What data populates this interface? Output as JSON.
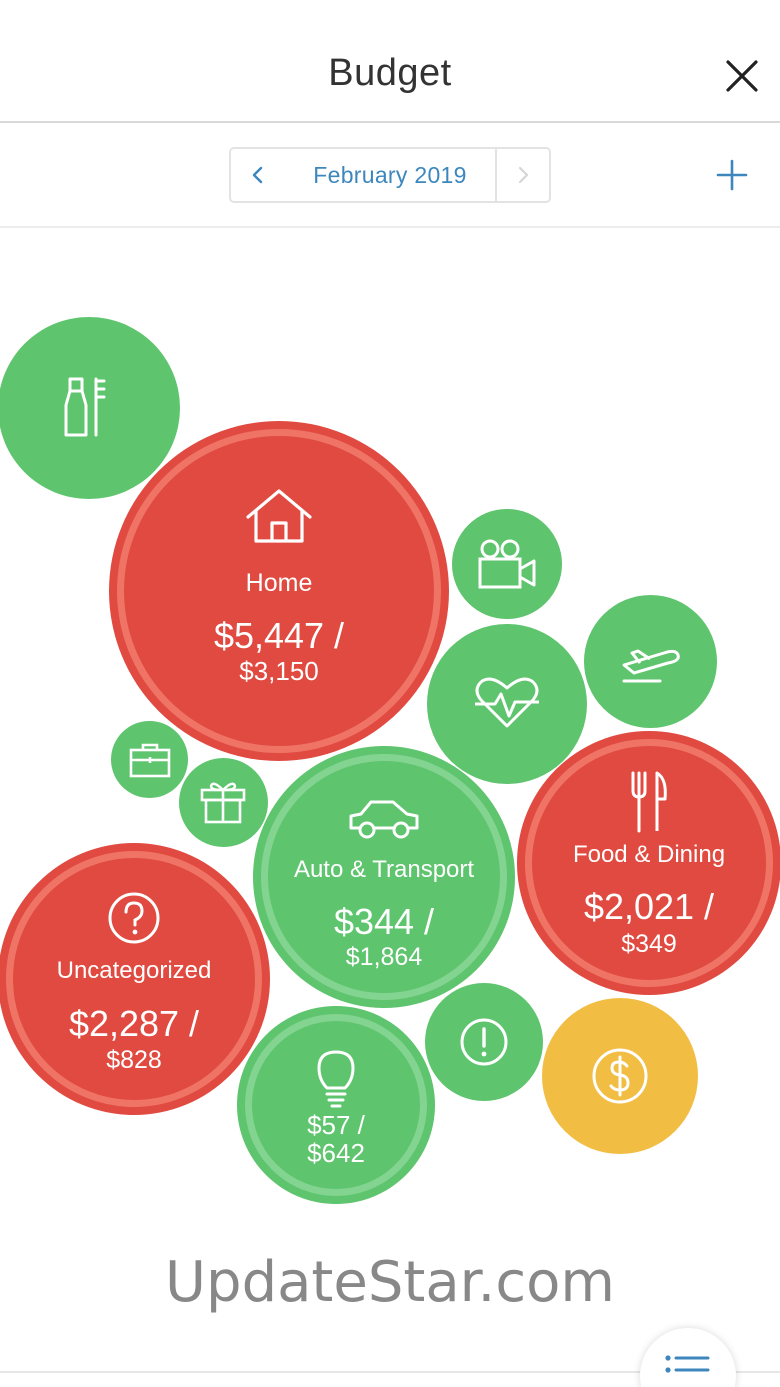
{
  "header": {
    "title": "Budget",
    "close_icon": "close-icon"
  },
  "month_selector": {
    "month": "February 2019",
    "prev_icon": "chevron-left-icon",
    "next_icon": "chevron-right-icon",
    "add_icon": "plus-icon"
  },
  "colors": {
    "over_budget": "#e04a40",
    "under_budget": "#5ec46e",
    "income": "#f1bd43",
    "accent": "#3d87bd"
  },
  "bubbles": {
    "personal_care": {
      "icon": "toothbrush-icon",
      "status": "under"
    },
    "home": {
      "label": "Home",
      "spent": "$5,447 /",
      "budget": "$3,150",
      "icon": "house-icon",
      "status": "over"
    },
    "entertainment": {
      "icon": "video-camera-icon",
      "status": "under"
    },
    "travel": {
      "icon": "airplane-icon",
      "status": "under"
    },
    "health": {
      "icon": "heartbeat-icon",
      "status": "under"
    },
    "business": {
      "icon": "briefcase-icon",
      "status": "under"
    },
    "gifts": {
      "icon": "gift-icon",
      "status": "under"
    },
    "auto": {
      "label": "Auto & Transport",
      "spent": "$344 /",
      "budget": "$1,864",
      "icon": "car-icon",
      "status": "under"
    },
    "food": {
      "label": "Food & Dining",
      "spent": "$2,021 /",
      "budget": "$349",
      "icon": "fork-knife-icon",
      "status": "over"
    },
    "uncategorized": {
      "label": "Uncategorized",
      "spent": "$2,287 /",
      "budget": "$828",
      "icon": "question-icon",
      "status": "over"
    },
    "utilities": {
      "spent": "$57 /",
      "budget": "$642",
      "icon": "lightbulb-icon",
      "status": "under"
    },
    "fees": {
      "icon": "exclamation-icon",
      "status": "under"
    },
    "income": {
      "icon": "dollar-icon",
      "status": "income"
    }
  },
  "watermark": "UpdateStar.com",
  "fab": {
    "icon": "list-icon"
  }
}
